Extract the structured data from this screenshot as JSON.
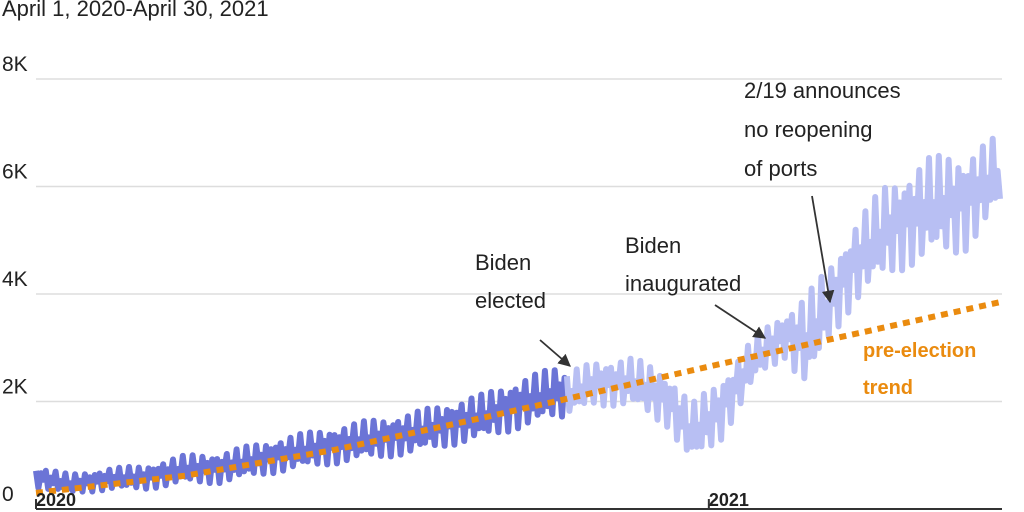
{
  "subtitle": "April 1, 2020-April 30, 2021",
  "chart_data": {
    "type": "line",
    "title": "",
    "subtitle": "April 1, 2020-April 30, 2021",
    "xlabel": "",
    "ylabel": "",
    "x_range": [
      "2020-04-01",
      "2021-04-30"
    ],
    "ylim": [
      0,
      8000
    ],
    "y_ticks": [
      {
        "value": 0,
        "label": "0"
      },
      {
        "value": 2000,
        "label": "2K"
      },
      {
        "value": 4000,
        "label": "4K"
      },
      {
        "value": 6000,
        "label": "6K"
      },
      {
        "value": 8000,
        "label": "8K"
      }
    ],
    "x_ticks": [
      {
        "date": "2020-04-01",
        "label": "2020"
      },
      {
        "date": "2021-01-01",
        "label": "2021"
      }
    ],
    "grid": true,
    "colors": {
      "before_election": "#6b74d6",
      "after_election": "#b8bff3",
      "trend": "#ea8b0f",
      "grid": "#dddddd",
      "axis": "#333333"
    },
    "series": [
      {
        "style": "before_election",
        "points": [
          [
            "2020-04-01",
            600
          ],
          [
            "2020-04-15",
            460
          ],
          [
            "2020-05-01",
            560
          ],
          [
            "2020-05-15",
            580
          ],
          [
            "2020-06-01",
            740
          ],
          [
            "2020-06-15",
            760
          ],
          [
            "2020-07-01",
            920
          ],
          [
            "2020-07-15",
            1050
          ],
          [
            "2020-08-01",
            1180
          ],
          [
            "2020-08-15",
            1290
          ],
          [
            "2020-09-01",
            1400
          ],
          [
            "2020-09-15",
            1560
          ],
          [
            "2020-10-01",
            1720
          ],
          [
            "2020-10-15",
            1950
          ],
          [
            "2020-11-01",
            2180
          ],
          [
            "2020-11-04",
            2100
          ]
        ],
        "amplitude": [
          200,
          180,
          200,
          220,
          260,
          280,
          300,
          320,
          340,
          360,
          380,
          400,
          420,
          460,
          480,
          420
        ]
      },
      {
        "style": "after_election",
        "points": [
          [
            "2020-11-04",
            2100
          ],
          [
            "2020-11-15",
            2350
          ],
          [
            "2020-12-01",
            2350
          ],
          [
            "2020-12-15",
            2050
          ],
          [
            "2020-12-25",
            1400
          ],
          [
            "2021-01-05",
            1800
          ],
          [
            "2021-01-20",
            2800
          ],
          [
            "2021-02-01",
            3250
          ],
          [
            "2021-02-10",
            3100
          ],
          [
            "2021-02-19",
            3800
          ],
          [
            "2021-03-01",
            4550
          ],
          [
            "2021-03-15",
            5200
          ],
          [
            "2021-04-01",
            5600
          ],
          [
            "2021-04-15",
            5700
          ],
          [
            "2021-04-30",
            6250
          ]
        ],
        "amplitude": [
          400,
          420,
          460,
          520,
          560,
          600,
          420,
          440,
          900,
          700,
          760,
          880,
          950,
          950,
          700
        ]
      },
      {
        "name": "pre-election trend",
        "style": "trend",
        "points": [
          [
            "2020-04-01",
            300
          ],
          [
            "2020-06-01",
            620
          ],
          [
            "2020-08-01",
            1100
          ],
          [
            "2020-10-01",
            1700
          ],
          [
            "2020-11-04",
            2050
          ],
          [
            "2021-01-01",
            2650
          ],
          [
            "2021-02-19",
            3150
          ],
          [
            "2021-04-30",
            3850
          ]
        ]
      }
    ],
    "annotations": [
      {
        "lines": [
          "Biden",
          "elected"
        ],
        "date": "2020-11-04"
      },
      {
        "lines": [
          "Biden",
          "inaugurated"
        ],
        "date": "2021-01-20"
      },
      {
        "lines": [
          "2/19 announces",
          "no reopening",
          "of ports"
        ],
        "date": "2021-02-19"
      }
    ],
    "trend_label": [
      "pre-election",
      "trend"
    ]
  }
}
